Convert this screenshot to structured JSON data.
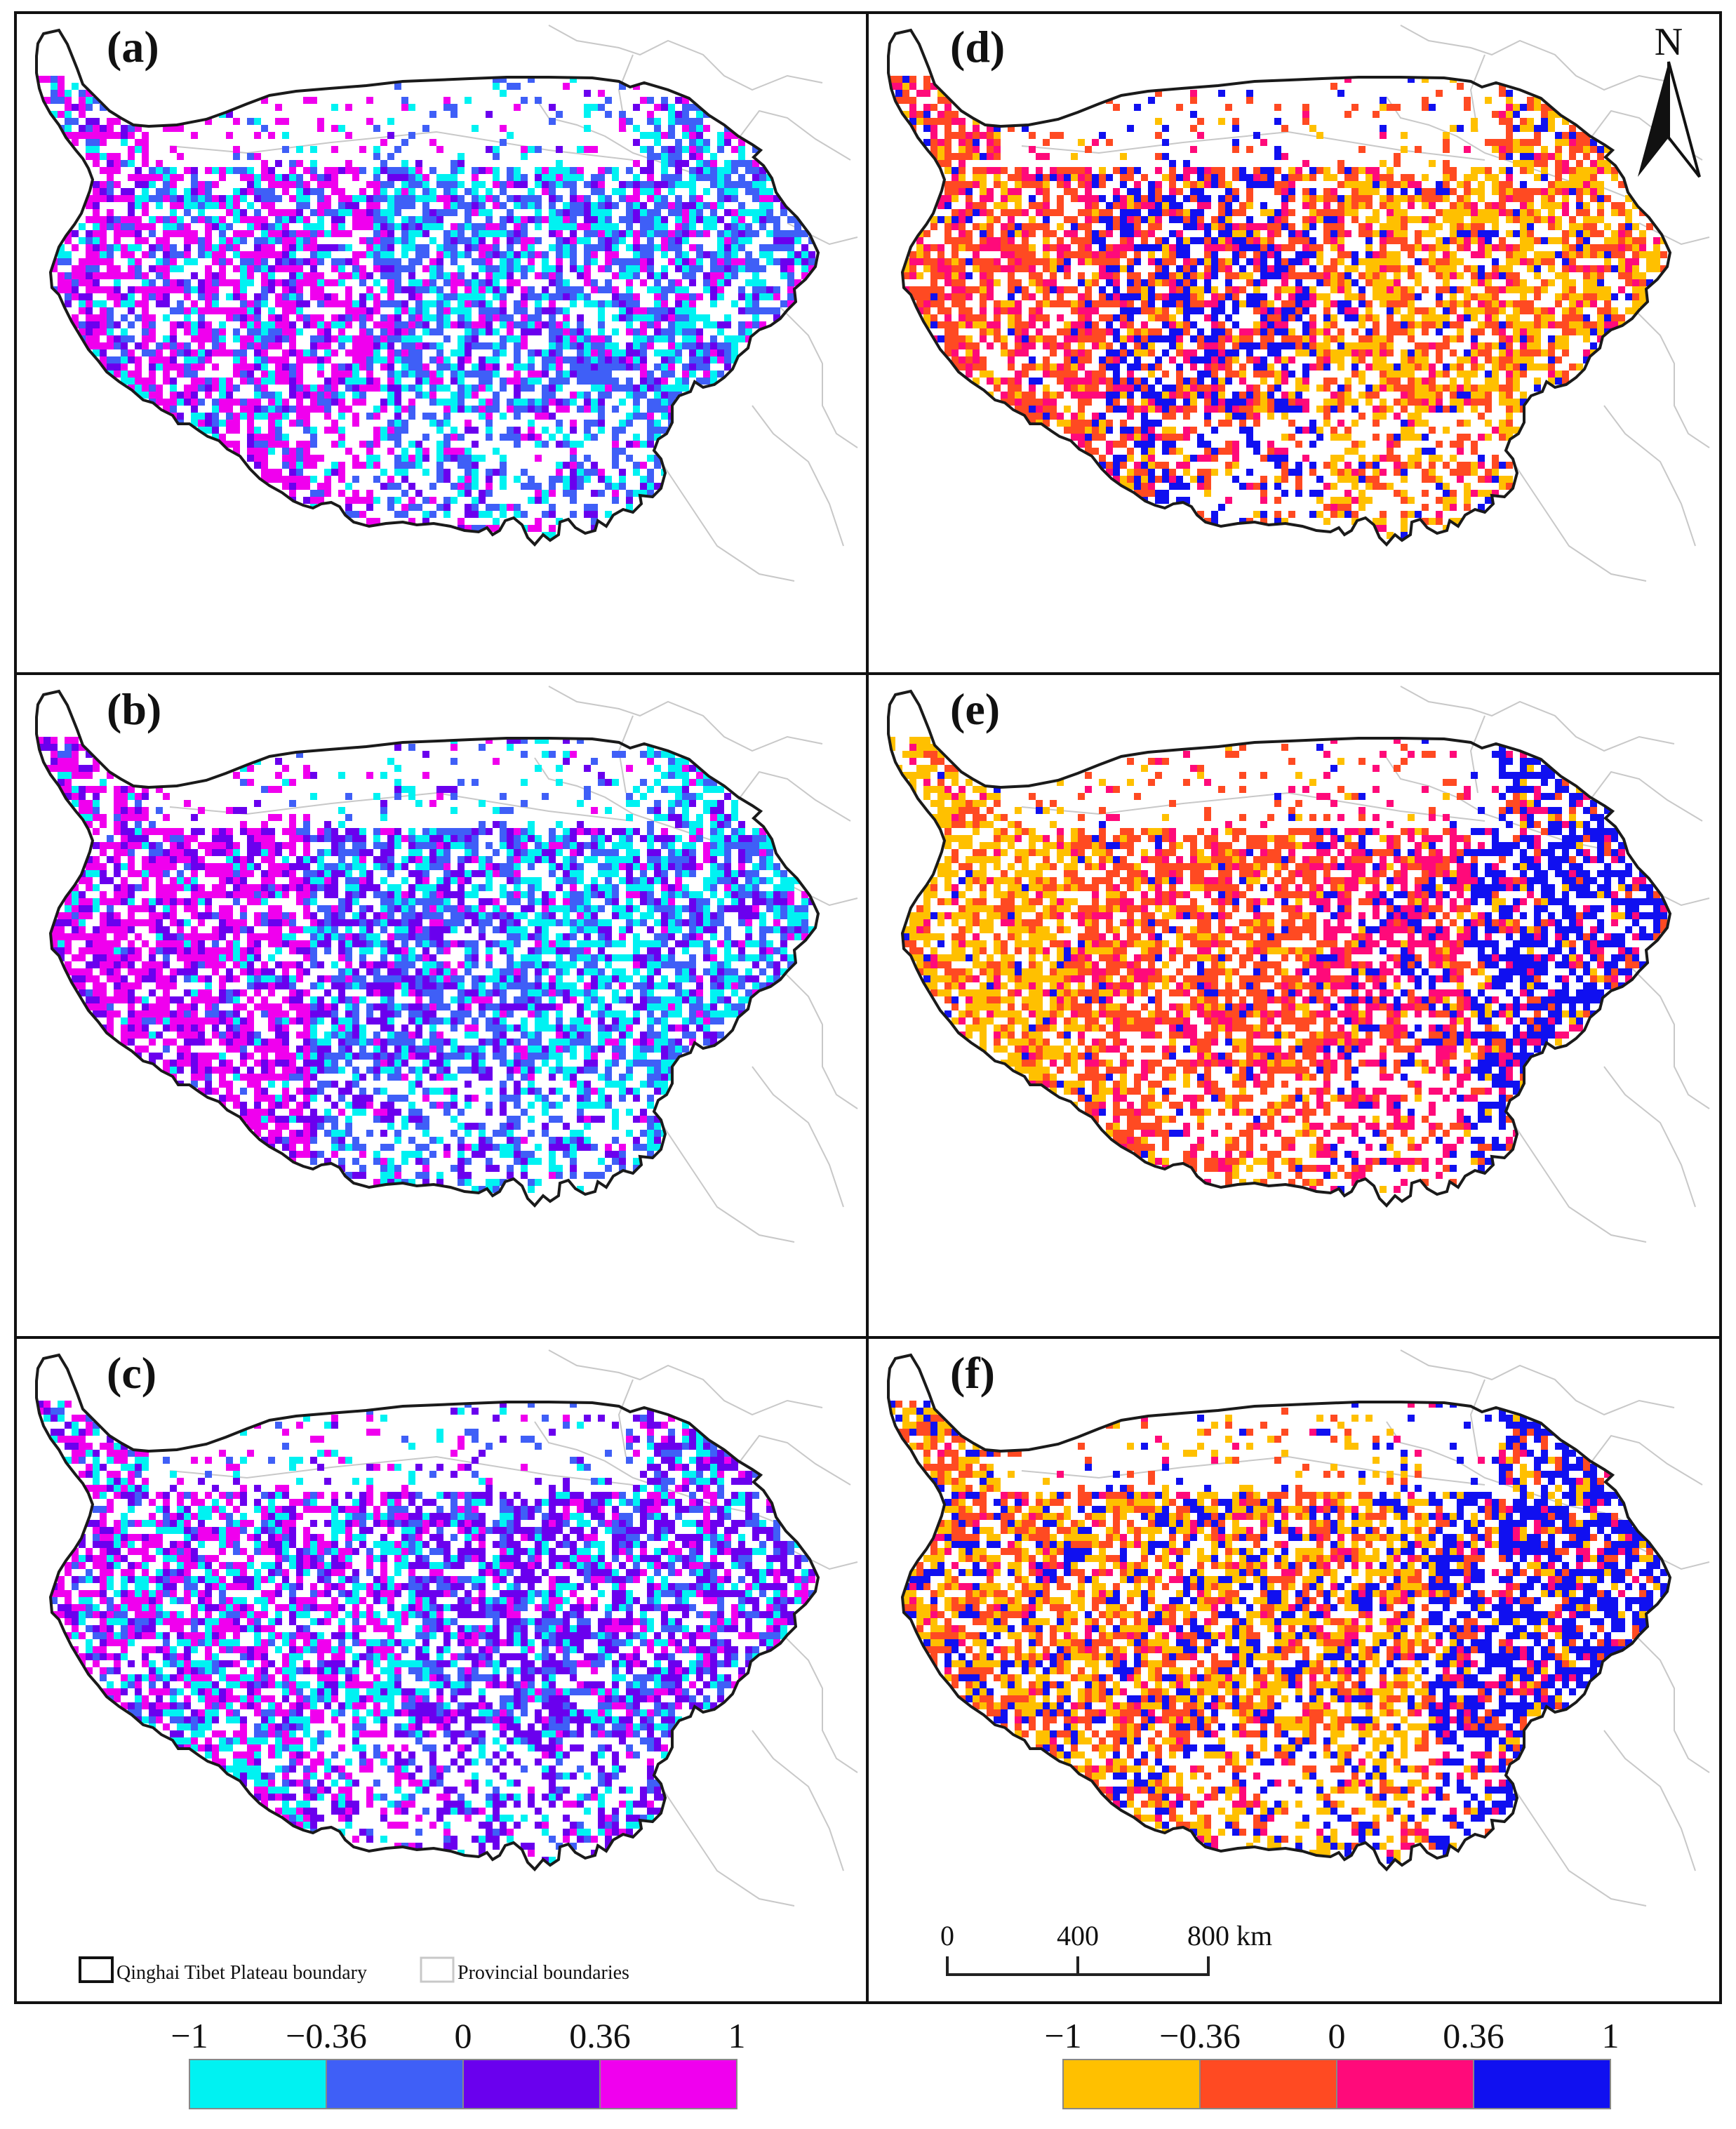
{
  "panels": [
    {
      "id": "a",
      "label": "(a)",
      "palette": "left",
      "distribution": "a"
    },
    {
      "id": "b",
      "label": "(b)",
      "palette": "left",
      "distribution": "b"
    },
    {
      "id": "c",
      "label": "(c)",
      "palette": "left",
      "distribution": "c"
    },
    {
      "id": "d",
      "label": "(d)",
      "palette": "right",
      "distribution": "d"
    },
    {
      "id": "e",
      "label": "(e)",
      "palette": "right",
      "distribution": "e"
    },
    {
      "id": "f",
      "label": "(f)",
      "palette": "right",
      "distribution": "f"
    }
  ],
  "north_arrow": {
    "label": "N"
  },
  "scale_bar": {
    "ticks": [
      "0",
      "400",
      "800"
    ],
    "unit": "km"
  },
  "map_legend": {
    "plateau_boundary": "Qinghai Tibet Plateau boundary",
    "provincial_boundaries": "Provincial boundaries"
  },
  "colorbars": {
    "left": {
      "tick_labels": [
        "−1",
        "−0.36",
        "0",
        "0.36",
        "1"
      ],
      "class_breaks": [
        -1,
        -0.36,
        0,
        0.36,
        1
      ],
      "colors": [
        "#00f2f2",
        "#3f5ff7",
        "#6a00ee",
        "#f000ee"
      ]
    },
    "right": {
      "tick_labels": [
        "−1",
        "−0.36",
        "0",
        "0.36",
        "1"
      ],
      "class_breaks": [
        -1,
        -0.36,
        0,
        0.36,
        1
      ],
      "colors": [
        "#ffc000",
        "#ff4a22",
        "#ff0a7a",
        "#1010f0"
      ]
    }
  }
}
